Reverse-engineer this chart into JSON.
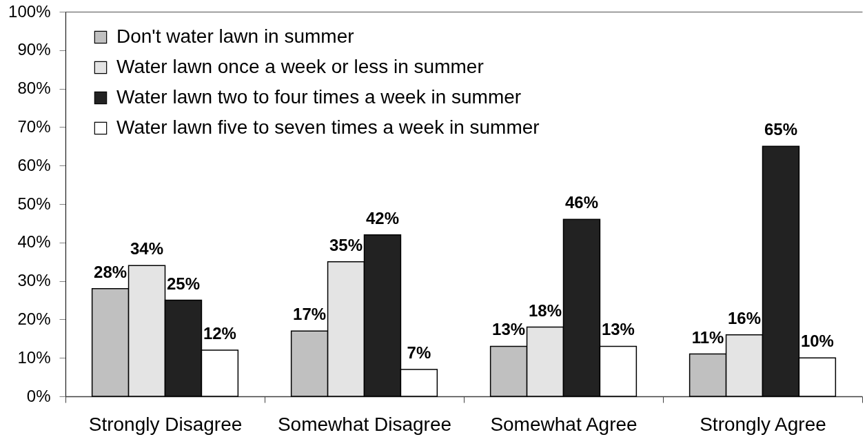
{
  "chart_data": {
    "type": "bar",
    "categories": [
      "Strongly Disagree",
      "Somewhat Disagree",
      "Somewhat Agree",
      "Strongly Agree"
    ],
    "series": [
      {
        "name": "Don't water lawn in summer",
        "color": "#c0c0c0",
        "values": [
          28,
          17,
          13,
          11
        ],
        "value_labels": [
          "28%",
          "17%",
          "13%",
          "11%"
        ]
      },
      {
        "name": "Water lawn once a week or less in summer",
        "color": "#e4e4e4",
        "values": [
          34,
          35,
          18,
          16
        ],
        "value_labels": [
          "34%",
          "35%",
          "18%",
          "16%"
        ]
      },
      {
        "name": "Water lawn two to four times a week in summer",
        "color": "#222222",
        "values": [
          25,
          42,
          46,
          65
        ],
        "value_labels": [
          "25%",
          "42%",
          "46%",
          "65%"
        ]
      },
      {
        "name": "Water lawn five to seven times a week in summer",
        "color": "#ffffff",
        "values": [
          12,
          7,
          13,
          10
        ],
        "value_labels": [
          "12%",
          "7%",
          "13%",
          "10%"
        ]
      }
    ],
    "ylim": [
      0,
      100
    ],
    "yticks": [
      {
        "value": 0,
        "label": "0%"
      },
      {
        "value": 10,
        "label": "10%"
      },
      {
        "value": 20,
        "label": "20%"
      },
      {
        "value": 30,
        "label": "30%"
      },
      {
        "value": 40,
        "label": "40%"
      },
      {
        "value": 50,
        "label": "50%"
      },
      {
        "value": 60,
        "label": "60%"
      },
      {
        "value": 70,
        "label": "70%"
      },
      {
        "value": 80,
        "label": "80%"
      },
      {
        "value": 90,
        "label": "90%"
      },
      {
        "value": 100,
        "label": "100%"
      }
    ],
    "legend": "top left"
  }
}
